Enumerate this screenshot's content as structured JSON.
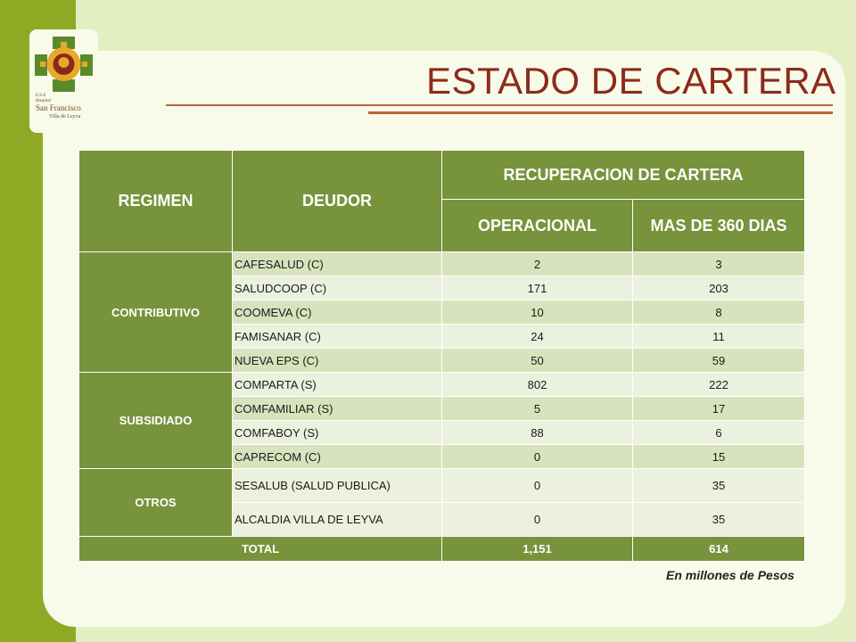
{
  "title": "ESTADO DE CARTERA",
  "logo": {
    "line1": "E.S.E",
    "line2": "Hospital",
    "name": "San Francisco",
    "place": "Villa de Leyva"
  },
  "table": {
    "header": {
      "regimen": "REGIMEN",
      "deudor": "DEUDOR",
      "group": "RECUPERACION DE CARTERA",
      "col1": "OPERACIONAL",
      "col2": "MAS DE 360 DIAS"
    },
    "regimes": {
      "contributivo": "CONTRIBUTIVO",
      "subsidiado": "SUBSIDIADO",
      "otros": "OTROS"
    },
    "rows": [
      {
        "deudor": "CAFESALUD (C)",
        "operacional": "2",
        "mas360": "3"
      },
      {
        "deudor": "SALUDCOOP (C)",
        "operacional": "171",
        "mas360": "203"
      },
      {
        "deudor": "COOMEVA (C)",
        "operacional": "10",
        "mas360": "8"
      },
      {
        "deudor": "FAMISANAR (C)",
        "operacional": "24",
        "mas360": "11"
      },
      {
        "deudor": "NUEVA EPS (C)",
        "operacional": "50",
        "mas360": "59"
      },
      {
        "deudor": "COMPARTA (S)",
        "operacional": "802",
        "mas360": "222"
      },
      {
        "deudor": "COMFAMILIAR  (S)",
        "operacional": "5",
        "mas360": "17"
      },
      {
        "deudor": "COMFABOY (S)",
        "operacional": "88",
        "mas360": "6"
      },
      {
        "deudor": "CAPRECOM (C)",
        "operacional": "0",
        "mas360": "15"
      },
      {
        "deudor": "SESALUB (SALUD PUBLICA)",
        "operacional": "0",
        "mas360": "35"
      },
      {
        "deudor": "ALCALDIA VILLA DE LEYVA",
        "operacional": "0",
        "mas360": "35"
      }
    ],
    "total": {
      "label": "TOTAL",
      "operacional": "1,151",
      "mas360": "614"
    }
  },
  "footnote": "En millones de Pesos",
  "colors": {
    "header_green": "#77933c",
    "title_red": "#8b2b1c",
    "row_dark": "#d7e3bd",
    "row_light": "#ebf1de"
  }
}
